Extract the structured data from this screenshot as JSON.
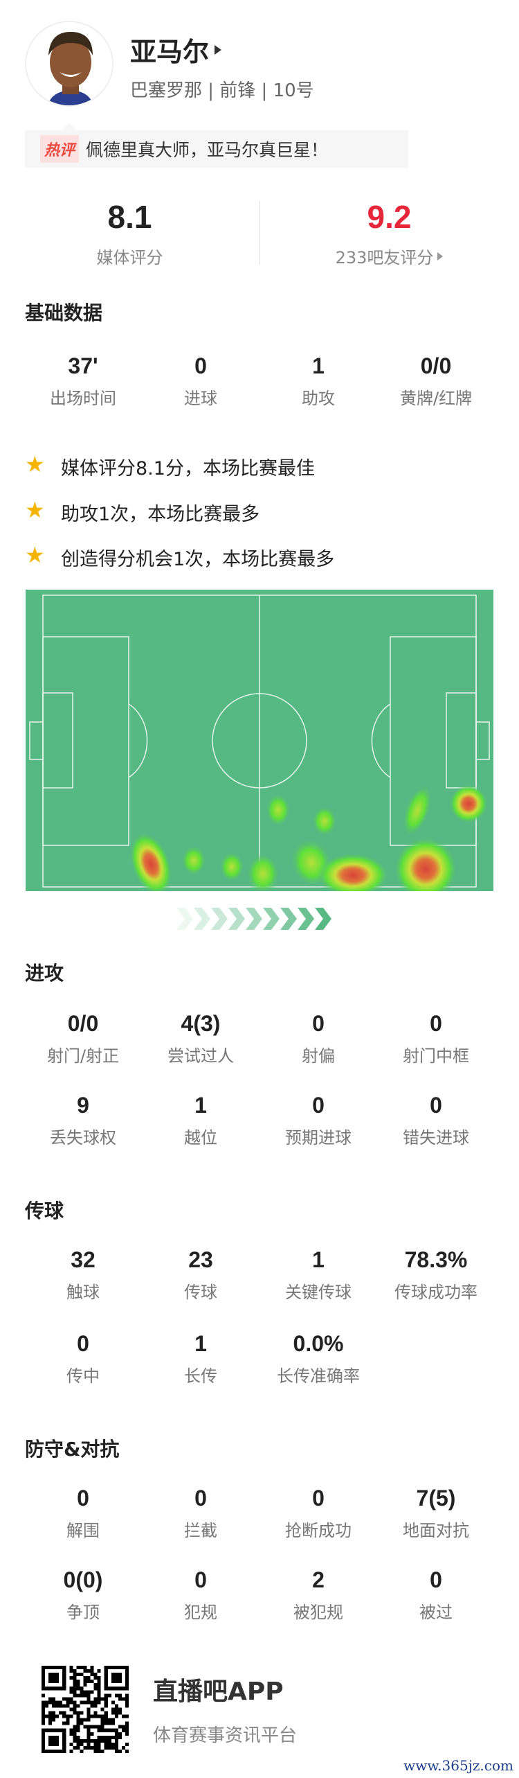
{
  "player": {
    "name": "亚马尔",
    "team": "巴塞罗那",
    "position": "前锋",
    "number": "10号",
    "subline": "巴塞罗那 | 前锋 | 10号"
  },
  "hot_comment": {
    "tag": "热评",
    "text": "佩德里真大师，亚马尔真巨星！"
  },
  "ratings": {
    "media": {
      "value": "8.1",
      "label": "媒体评分"
    },
    "fans": {
      "value": "9.2",
      "label": "233吧友评分",
      "color": "#e8263a"
    }
  },
  "basic": {
    "title": "基础数据",
    "stats": [
      {
        "value": "37'",
        "label": "出场时间"
      },
      {
        "value": "0",
        "label": "进球"
      },
      {
        "value": "1",
        "label": "助攻"
      },
      {
        "value": "0/0",
        "label": "黄牌/红牌"
      }
    ]
  },
  "highlights": [
    {
      "icon": "star-icon",
      "text": "媒体评分8.1分，本场比赛最佳"
    },
    {
      "icon": "star-icon",
      "text": "助攻1次，本场比赛最多"
    },
    {
      "icon": "star-icon",
      "text": "创造得分机会1次，本场比赛最多"
    }
  ],
  "heatmap": {
    "pitch_color": "#56b883",
    "direction": "attack-right"
  },
  "attack": {
    "title": "进攻",
    "stats": [
      {
        "value": "0/0",
        "label": "射门/射正"
      },
      {
        "value": "4(3)",
        "label": "尝试过人"
      },
      {
        "value": "0",
        "label": "射偏"
      },
      {
        "value": "0",
        "label": "射门中框"
      },
      {
        "value": "9",
        "label": "丢失球权"
      },
      {
        "value": "1",
        "label": "越位"
      },
      {
        "value": "0",
        "label": "预期进球"
      },
      {
        "value": "0",
        "label": "错失进球"
      }
    ]
  },
  "passing": {
    "title": "传球",
    "stats": [
      {
        "value": "32",
        "label": "触球"
      },
      {
        "value": "23",
        "label": "传球"
      },
      {
        "value": "1",
        "label": "关键传球"
      },
      {
        "value": "78.3%",
        "label": "传球成功率"
      },
      {
        "value": "0",
        "label": "传中"
      },
      {
        "value": "1",
        "label": "长传"
      },
      {
        "value": "0.0%",
        "label": "长传准确率"
      }
    ]
  },
  "defense": {
    "title": "防守&对抗",
    "stats": [
      {
        "value": "0",
        "label": "解围"
      },
      {
        "value": "0",
        "label": "拦截"
      },
      {
        "value": "0",
        "label": "抢断成功"
      },
      {
        "value": "7(5)",
        "label": "地面对抗"
      },
      {
        "value": "0(0)",
        "label": "争顶"
      },
      {
        "value": "0",
        "label": "犯规"
      },
      {
        "value": "2",
        "label": "被犯规"
      },
      {
        "value": "0",
        "label": "被过"
      }
    ]
  },
  "footer": {
    "app_name": "直播吧APP",
    "app_desc": "体育赛事资讯平台",
    "watermark": "www.365jz.com"
  }
}
